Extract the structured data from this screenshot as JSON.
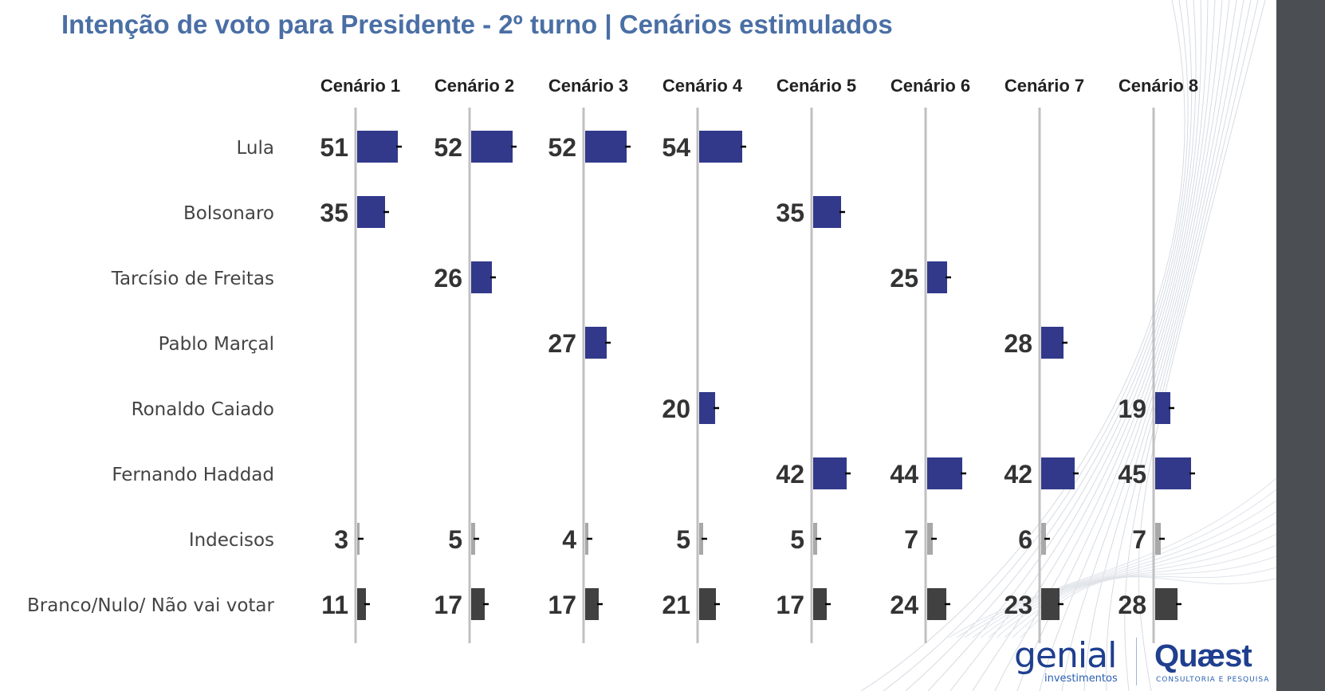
{
  "title": "Intenção de voto para Presidente - 2º turno | Cenários estimulados",
  "chart_data": {
    "type": "bar",
    "orientation": "horizontal",
    "title": "Intenção de voto para Presidente - 2º turno | Cenários estimulados",
    "panels": [
      "Cenário 1",
      "Cenário 2",
      "Cenário 3",
      "Cenário 4",
      "Cenário 5",
      "Cenário 6",
      "Cenário 7",
      "Cenário 8"
    ],
    "categories": [
      "Lula",
      "Bolsonaro",
      "Tarcísio de Freitas",
      "Pablo Marçal",
      "Ronaldo Caiado",
      "Fernando Haddad",
      "Indecisos",
      "Branco/Nulo/ Não vai votar"
    ],
    "values": [
      [
        51,
        52,
        52,
        54,
        null,
        null,
        null,
        null
      ],
      [
        35,
        null,
        null,
        null,
        35,
        null,
        null,
        null
      ],
      [
        null,
        26,
        null,
        null,
        null,
        25,
        null,
        null
      ],
      [
        null,
        null,
        27,
        null,
        null,
        null,
        28,
        null
      ],
      [
        null,
        null,
        null,
        20,
        null,
        null,
        null,
        19
      ],
      [
        null,
        null,
        null,
        null,
        42,
        44,
        42,
        45
      ],
      [
        3,
        5,
        4,
        5,
        5,
        7,
        6,
        7
      ],
      [
        11,
        17,
        17,
        21,
        17,
        24,
        23,
        28
      ]
    ],
    "category_colors": [
      "#32398a",
      "#32398a",
      "#32398a",
      "#32398a",
      "#32398a",
      "#32398a",
      "#a8a8a8",
      "#414141"
    ],
    "xlim": [
      0,
      60
    ],
    "error_bars": true,
    "grid": false,
    "legend": "none"
  },
  "logos": {
    "genial": {
      "main": "genial",
      "sub": "investimentos"
    },
    "quaest": {
      "main": "Quæst",
      "sub": "CONSULTORIA E PESQUISA"
    }
  },
  "colors": {
    "title": "#4a6fa5",
    "candidate_bar": "#32398a",
    "undecided_bar": "#a8a8a8",
    "blank_bar": "#414141",
    "axis_line": "#c0c0c0",
    "side_bar": "#4b4e52"
  }
}
